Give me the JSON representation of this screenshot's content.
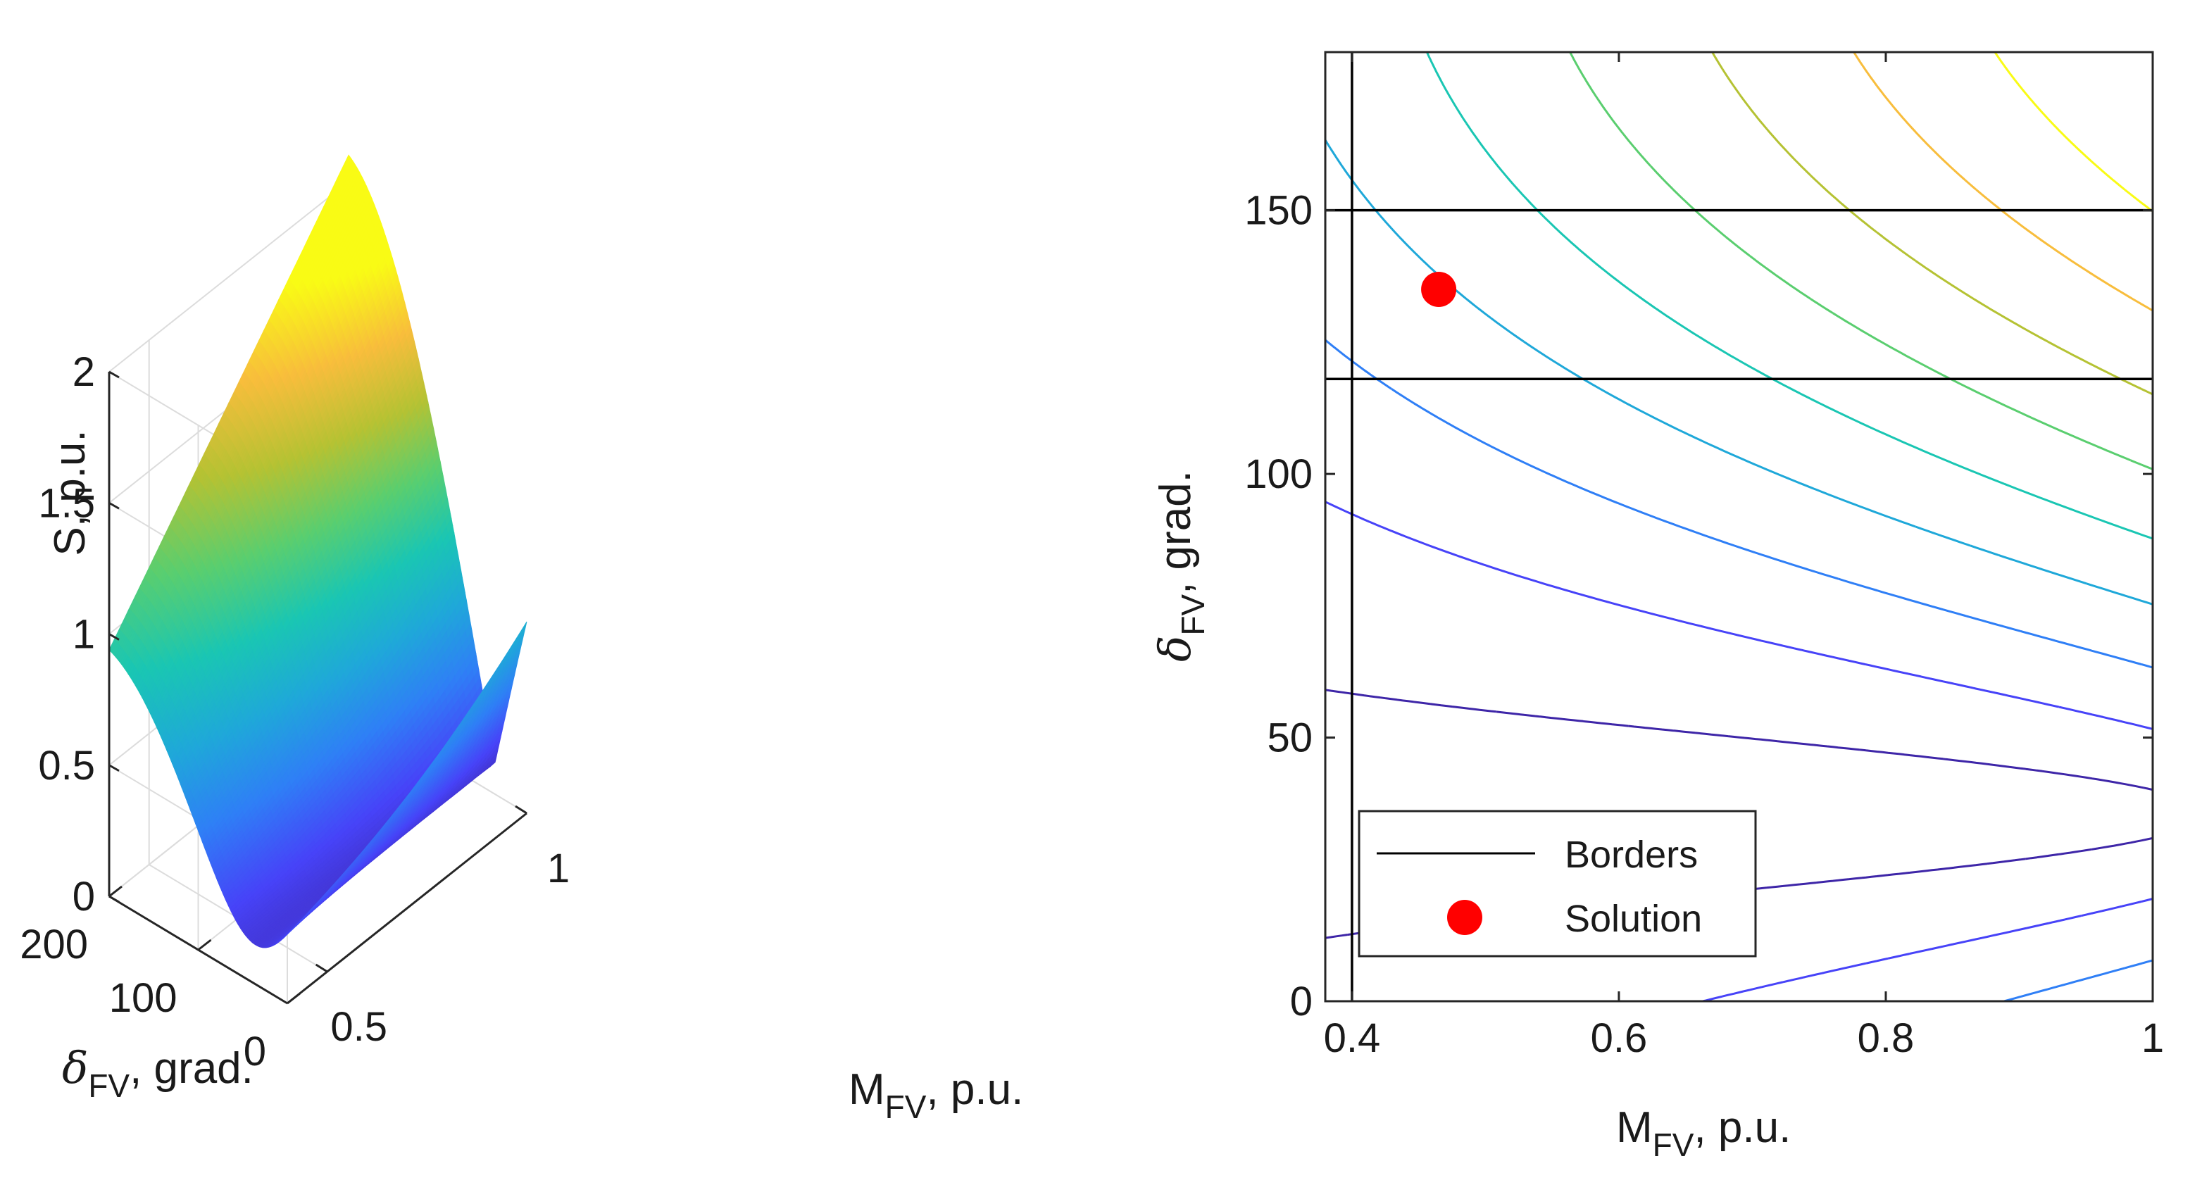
{
  "colors": {
    "axis": "#262626",
    "grid": "#dcdcdc",
    "solution": "#ff0000",
    "border_line": "#000000",
    "colormap": [
      "#3e26a8",
      "#4743f8",
      "#2f7ff6",
      "#1fa8d9",
      "#1ac6b3",
      "#5ace6f",
      "#b5c233",
      "#f8bd3c",
      "#f9fb15"
    ]
  },
  "chart_data": [
    {
      "type": "surface",
      "xlabel_main": "M",
      "xlabel_sub": "FV",
      "xlabel_rest": ", p.u.",
      "ylabel_main": "δ",
      "ylabel_sub": "FV",
      "ylabel_rest": ", grad.",
      "zlabel": "S, p.u.",
      "xlim": [
        0.4,
        1
      ],
      "ylim": [
        0,
        200
      ],
      "zlim": [
        0,
        2
      ],
      "x_ticks": [
        "0.5",
        "1"
      ],
      "x_tick_values": [
        0.5,
        1
      ],
      "y_ticks": [
        "0",
        "100",
        "200"
      ],
      "y_tick_values": [
        0,
        100,
        200
      ],
      "z_ticks": [
        "0",
        "0.5",
        "1",
        "1.5",
        "2"
      ],
      "z_tick_values": [
        0,
        0.5,
        1,
        1.5,
        2
      ]
    },
    {
      "type": "contour",
      "xlabel_main": "M",
      "xlabel_sub": "FV",
      "xlabel_rest": ", p.u.",
      "ylabel_main": "δ",
      "ylabel_sub": "FV",
      "ylabel_rest": ", grad.",
      "xlim": [
        0.38,
        1
      ],
      "ylim": [
        0,
        180
      ],
      "x_ticks": [
        "0.4",
        "0.6",
        "0.8",
        "1"
      ],
      "x_tick_values": [
        0.4,
        0.6,
        0.8,
        1
      ],
      "y_ticks": [
        "0",
        "50",
        "100",
        "150"
      ],
      "y_tick_values": [
        0,
        50,
        100,
        150
      ],
      "contour_levels": [
        0.2,
        0.4,
        0.6,
        0.8,
        1.0,
        1.2,
        1.4,
        1.6,
        1.8
      ],
      "borders": {
        "M_FV": 0.4,
        "delta_FV": [
          118,
          150
        ]
      },
      "solution": {
        "M_FV": 0.465,
        "delta_FV": 135
      },
      "legend": {
        "position": "bottom-left",
        "entries": [
          "Borders",
          "Solution"
        ]
      }
    }
  ]
}
